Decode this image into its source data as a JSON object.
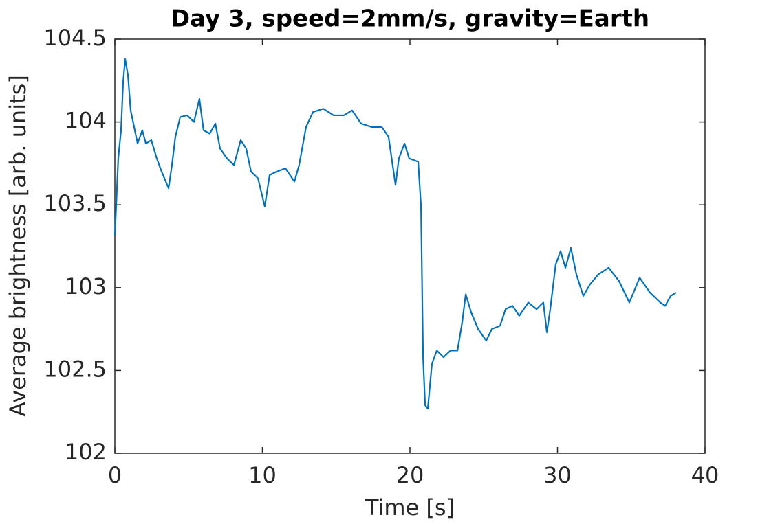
{
  "chart_data": {
    "type": "line",
    "title": "Day 3, speed=2mm/s, gravity=Earth",
    "x_label": "Time [s]",
    "y_label": "Average brightness [arb. units]",
    "color": "#0072bd",
    "x": [
      0,
      0.23,
      0.42,
      0.56,
      0.7,
      0.89,
      1.07,
      1.35,
      1.54,
      1.86,
      2.1,
      2.47,
      2.84,
      3.17,
      3.64,
      3.87,
      4.1,
      4.43,
      4.9,
      5.36,
      5.73,
      6.01,
      6.43,
      6.81,
      7.13,
      7.6,
      8.07,
      8.53,
      8.9,
      9.23,
      9.7,
      10.16,
      10.49,
      10.96,
      11.56,
      12.17,
      12.49,
      12.96,
      13.43,
      14.13,
      14.83,
      15.52,
      16.08,
      16.69,
      17.39,
      18.09,
      18.55,
      19.02,
      19.25,
      19.63,
      19.95,
      20.56,
      20.75,
      20.89,
      21.03,
      21.21,
      21.49,
      21.82,
      22.28,
      22.75,
      23.22,
      23.54,
      23.78,
      24.15,
      24.62,
      25.17,
      25.55,
      26.11,
      26.48,
      26.95,
      27.41,
      28.02,
      28.58,
      29.04,
      29.28,
      29.51,
      29.88,
      30.21,
      30.54,
      30.91,
      31.28,
      31.75,
      32.21,
      32.77,
      33.47,
      34.17,
      34.87,
      35.57,
      36.27,
      36.97,
      37.3,
      37.67,
      38.04
    ],
    "values": [
      103.31,
      103.78,
      103.95,
      104.24,
      104.38,
      104.28,
      104.07,
      103.95,
      103.87,
      103.95,
      103.87,
      103.89,
      103.78,
      103.7,
      103.6,
      103.74,
      103.91,
      104.03,
      104.04,
      104.0,
      104.14,
      103.95,
      103.93,
      103.99,
      103.84,
      103.78,
      103.74,
      103.89,
      103.84,
      103.7,
      103.66,
      103.49,
      103.68,
      103.7,
      103.72,
      103.64,
      103.74,
      103.97,
      104.06,
      104.08,
      104.04,
      104.04,
      104.07,
      103.99,
      103.97,
      103.97,
      103.91,
      103.62,
      103.78,
      103.87,
      103.78,
      103.76,
      103.49,
      102.58,
      102.29,
      102.27,
      102.54,
      102.62,
      102.58,
      102.62,
      102.62,
      102.79,
      102.96,
      102.85,
      102.75,
      102.68,
      102.75,
      102.77,
      102.87,
      102.89,
      102.83,
      102.91,
      102.87,
      102.91,
      102.73,
      102.87,
      103.14,
      103.22,
      103.12,
      103.24,
      103.08,
      102.95,
      103.02,
      103.08,
      103.12,
      103.04,
      102.91,
      103.06,
      102.97,
      102.91,
      102.89,
      102.95,
      102.97
    ],
    "xlim": [
      0,
      40
    ],
    "xticks": [
      0,
      10,
      20,
      30,
      40
    ],
    "ylim": [
      102,
      104.5
    ],
    "yticks": [
      102,
      102.5,
      103,
      103.5,
      104,
      104.5
    ],
    "grid": false
  }
}
